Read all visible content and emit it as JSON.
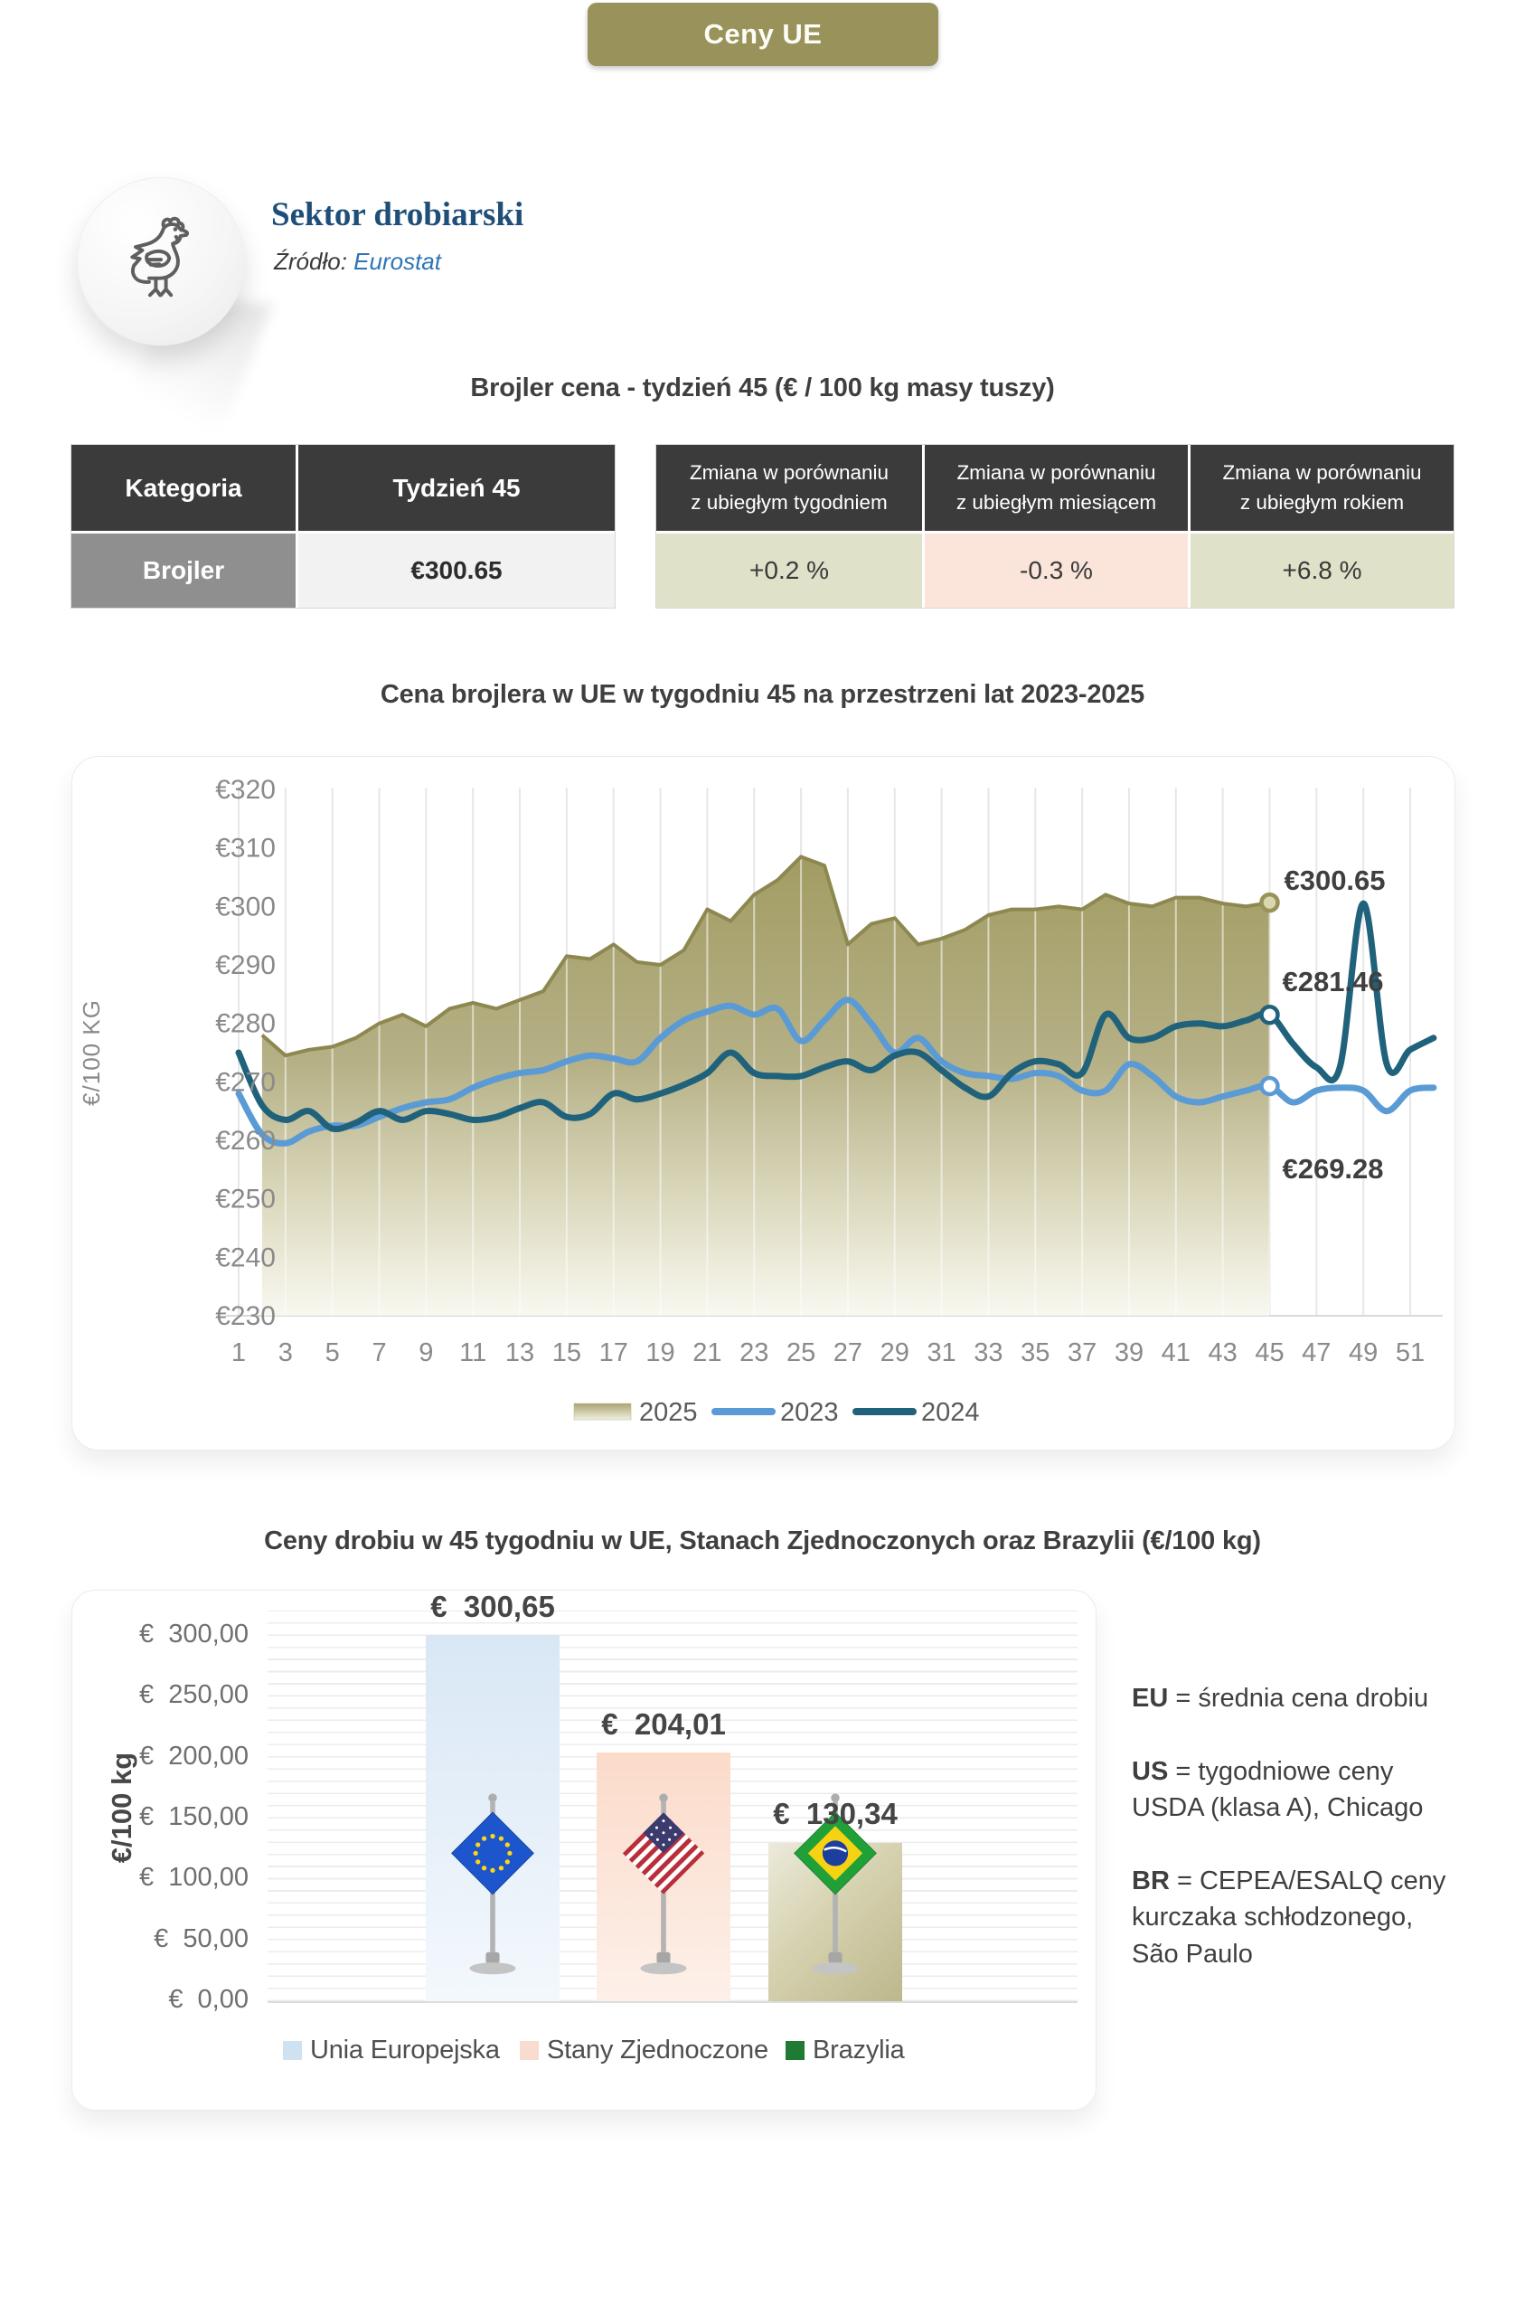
{
  "page": {
    "top_button_label": "Ceny UE"
  },
  "header": {
    "title": "Sektor drobiarski",
    "source_label": "Źródło:",
    "source_value": "Eurostat"
  },
  "price_table": {
    "title": "Brojler cena - tydzień 45 (€ / 100 kg masy tuszy)",
    "col_category": "Kategoria",
    "col_week": "Tydzień 45",
    "row_category": "Brojler",
    "row_price": "€300.65",
    "changes": [
      {
        "header": "Zmiana w porównaniu z ubiegłym tygodniem",
        "value": "+0.2 %",
        "tone": "positive"
      },
      {
        "header": "Zmiana w porównaniu z ubiegłym miesiącem",
        "value": "-0.3 %",
        "tone": "negative"
      },
      {
        "header": "Zmiana w porównaniu z ubiegłym rokiem",
        "value": "+6.8 %",
        "tone": "positive"
      }
    ],
    "tone_colors": {
      "positive": "#e0e1c9",
      "negative": "#fbe4da"
    }
  },
  "chart_data": [
    {
      "type": "line",
      "title": "Cena brojlera w UE w tygodniu 45 na przestrzeni lat 2023-2025",
      "xlabel": "",
      "ylabel": "€/100 KG",
      "ylim": [
        230,
        320
      ],
      "yticks": [
        320,
        310,
        300,
        290,
        280,
        270,
        260,
        250,
        240,
        230
      ],
      "ytick_prefix": "€",
      "xticks": [
        1,
        3,
        5,
        7,
        9,
        11,
        13,
        15,
        17,
        19,
        21,
        23,
        25,
        27,
        29,
        31,
        33,
        35,
        37,
        39,
        41,
        43,
        45,
        47,
        49,
        51
      ],
      "xlim": [
        1,
        52
      ],
      "grid": "vertical",
      "legend_position": "bottom",
      "legend": [
        "2025",
        "2023",
        "2024"
      ],
      "series": [
        {
          "name": "2025",
          "style": "area",
          "color": "#99925a",
          "line_color": "#8d8750",
          "start_week": 2,
          "values": [
            278,
            274.5,
            275.5,
            276,
            277.5,
            280,
            281.5,
            279.5,
            282.5,
            283.5,
            282.5,
            284,
            285.5,
            291.5,
            291,
            293.5,
            290.5,
            290,
            292.5,
            299.5,
            297.5,
            302,
            304.5,
            308.5,
            307,
            293.5,
            297,
            298,
            293.5,
            294.5,
            296,
            298.5,
            299.5,
            299.5,
            300,
            299.5,
            302,
            300.5,
            300,
            301.5,
            301.5,
            300.5,
            300,
            300.65
          ]
        },
        {
          "name": "2023",
          "style": "line",
          "color": "#5b9bd5",
          "start_week": 1,
          "values": [
            268,
            261,
            259.5,
            261.5,
            262.5,
            262.5,
            264,
            265.5,
            266.5,
            267,
            269,
            270.5,
            271.5,
            272,
            273.5,
            274.5,
            274,
            273.5,
            277.5,
            280.5,
            282,
            283,
            281.5,
            282.5,
            277,
            280.5,
            284,
            280,
            275,
            277.5,
            273.5,
            271.5,
            271,
            270.5,
            271.5,
            271,
            268.5,
            268.5,
            273,
            271,
            267.5,
            266.5,
            267.5,
            268.5,
            269.28,
            266.5,
            268.5,
            269,
            268.5,
            265,
            268.5,
            269
          ]
        },
        {
          "name": "2024",
          "style": "line",
          "color": "#20627b",
          "start_week": 1,
          "values": [
            275,
            266,
            263.5,
            265,
            262,
            263,
            265,
            263.5,
            265,
            264.5,
            263.5,
            264,
            265.5,
            266.5,
            264,
            264.5,
            268,
            267,
            268,
            269.5,
            271.5,
            275,
            271.5,
            271,
            271,
            272.5,
            273.5,
            272,
            274.5,
            275,
            272,
            269,
            267.5,
            271.5,
            273.5,
            273,
            271.5,
            281.5,
            277.5,
            277.5,
            279.5,
            280,
            279.5,
            280.5,
            281.46,
            276.5,
            272.5,
            272.5,
            300.5,
            273,
            275.5,
            277.5
          ]
        }
      ],
      "annotations": [
        {
          "text": "€300.65",
          "series": "2025",
          "week": 45
        },
        {
          "text": "€281.46",
          "series": "2024",
          "week": 45
        },
        {
          "text": "€269.28",
          "series": "2023",
          "week": 45
        }
      ]
    },
    {
      "type": "bar",
      "title": "Ceny drobiu w 45 tygodniu w UE, Stanach Zjednoczonych oraz Brazylii (€/100 kg)",
      "xlabel": "",
      "ylabel": "€/100 kg",
      "ylim": [
        0,
        300
      ],
      "grid": "horizontal",
      "legend_position": "bottom",
      "yticks": [
        {
          "value": 300,
          "label": "€  300,00"
        },
        {
          "value": 250,
          "label": "€  250,00"
        },
        {
          "value": 200,
          "label": "€  200,00"
        },
        {
          "value": 150,
          "label": "€  150,00"
        },
        {
          "value": 100,
          "label": "€  100,00"
        },
        {
          "value": 50,
          "label": "€  50,00"
        },
        {
          "value": 0,
          "label": "€  0,00"
        }
      ],
      "categories": [
        {
          "name": "Unia Europejska",
          "flag": "eu",
          "value": 300.65,
          "label": "€  300,65",
          "bar_color_top": "#d9e7f5",
          "bar_color_bottom": "#f3f8fd",
          "legend_color": "#cfe2f2"
        },
        {
          "name": "Stany Zjednoczone",
          "flag": "us",
          "value": 204.01,
          "label": "€  204,01",
          "bar_color_top": "#fbdbca",
          "bar_color_bottom": "#fdf0e9",
          "legend_color": "#f8dcd0"
        },
        {
          "name": "Brazylia",
          "flag": "br",
          "value": 130.34,
          "label": "€  130,34",
          "bar_color_top": "#eceadb",
          "bar_color_bottom": "#bdb78c",
          "legend_color": "#1f7a34"
        }
      ]
    }
  ],
  "notes": [
    {
      "abbr": "EU",
      "text": "= średnia cena drobiu"
    },
    {
      "abbr": "US",
      "text": "= tygodniowe ceny USDA (klasa A), Chicago"
    },
    {
      "abbr": "BR",
      "text": "= CEPEA/ESALQ ceny kurczaka schłodzonego, São Paulo"
    }
  ]
}
